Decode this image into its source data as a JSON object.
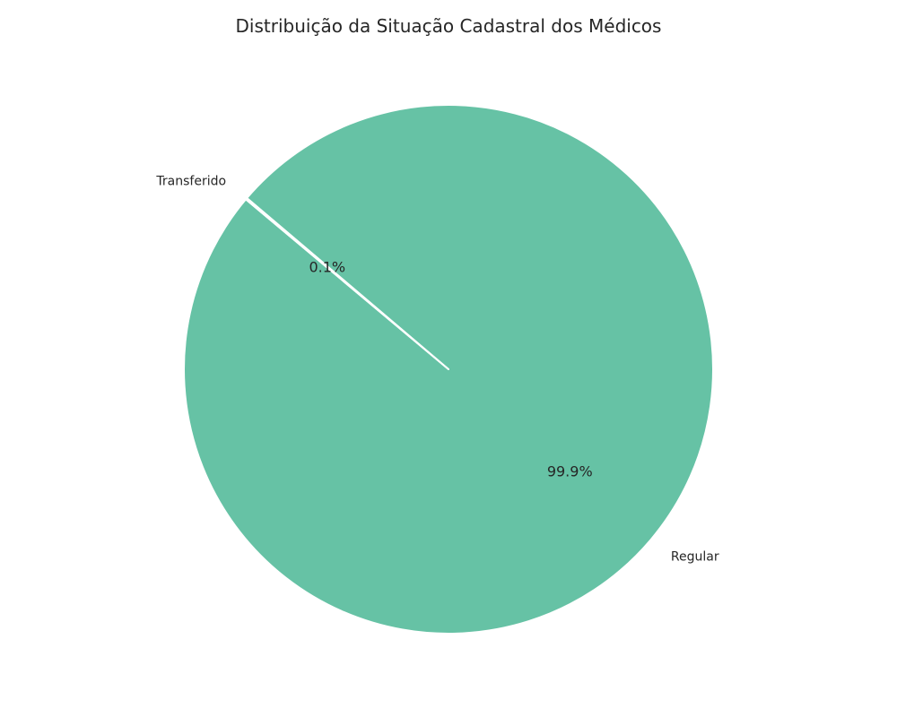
{
  "chart_data": {
    "type": "pie",
    "title": "Distribuição da Situação Cadastral dos Médicos",
    "categories": [
      "Regular",
      "Transferido"
    ],
    "values": [
      99.9,
      0.1
    ],
    "percent_labels": [
      "99.9%",
      "0.1%"
    ],
    "colors": [
      "#66c2a5",
      "#fc8d62"
    ],
    "start_angle_deg": 140,
    "legend": "none"
  }
}
